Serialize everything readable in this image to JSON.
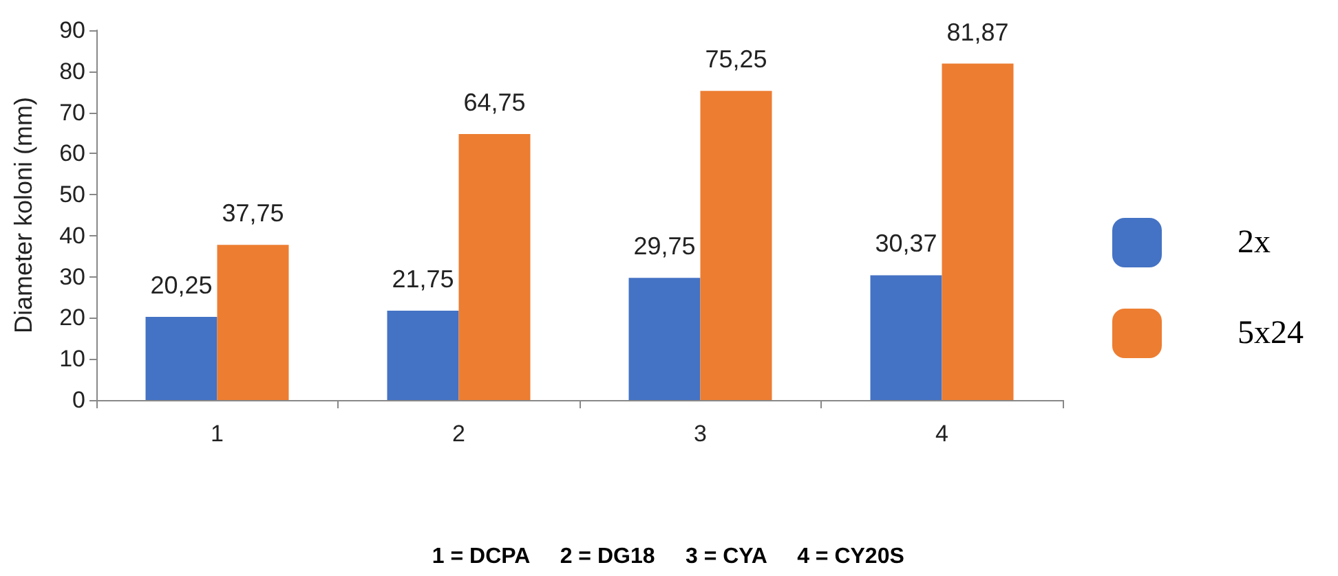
{
  "chart_data": {
    "type": "bar",
    "ylabel": "Diameter koloni (mm)",
    "categories": [
      "1",
      "2",
      "3",
      "4"
    ],
    "series": [
      {
        "name": "2x",
        "color": "#4472c4",
        "values": [
          20.25,
          21.75,
          29.75,
          30.37
        ],
        "value_labels": [
          "20,25",
          "21,75",
          "29,75",
          "30,37"
        ]
      },
      {
        "name": "5x24",
        "color": "#ed7d31",
        "values": [
          37.75,
          64.75,
          75.25,
          81.87
        ],
        "value_labels": [
          "37,75",
          "64,75",
          "75,25",
          "81,87"
        ]
      }
    ],
    "ylim": [
      0,
      90
    ],
    "yticks": [
      0,
      10,
      20,
      30,
      40,
      50,
      60,
      70,
      80,
      90
    ],
    "grid": false,
    "legend": "right",
    "annotations": [
      "1 = DCPA     2 = DG18     3 = CYA     4 = CY20S"
    ]
  }
}
